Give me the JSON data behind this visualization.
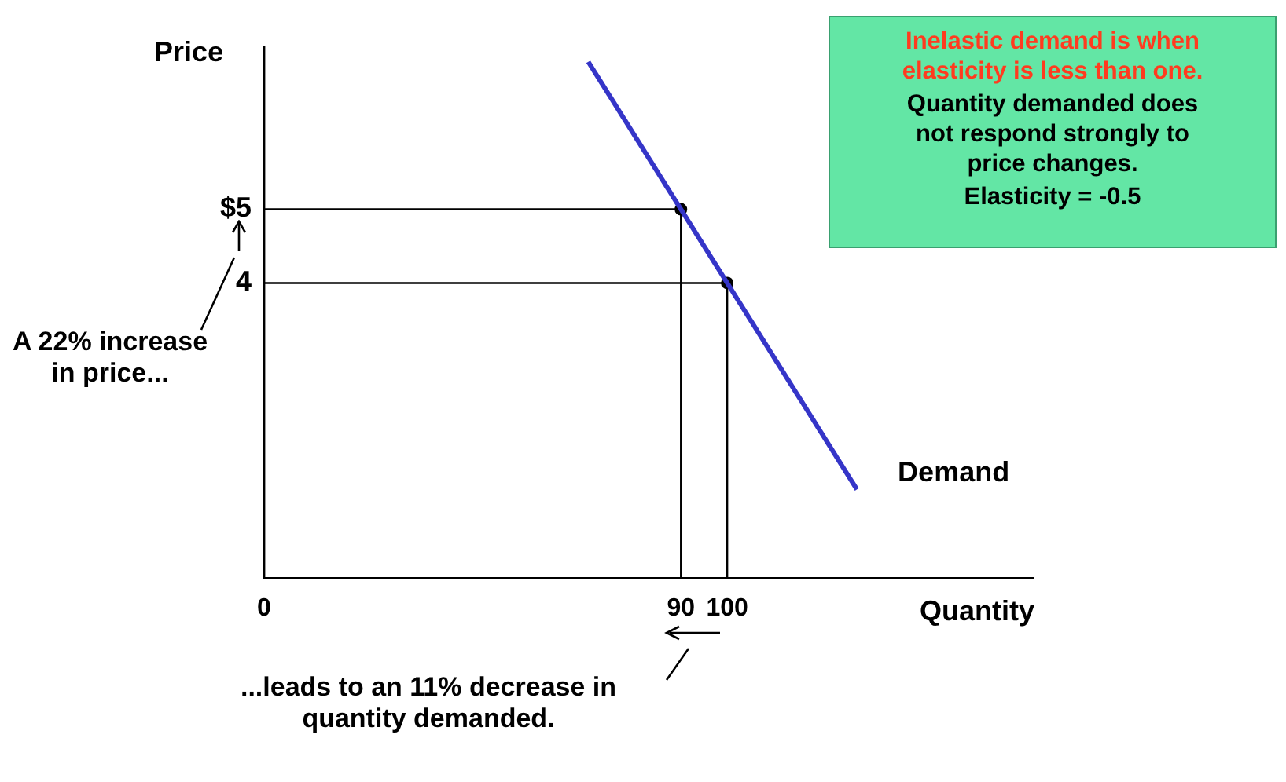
{
  "chart_data": {
    "type": "line",
    "xlabel": "Quantity",
    "ylabel": "Price",
    "xlim": [
      0,
      166
    ],
    "xticks": [
      0,
      90,
      100
    ],
    "ylim": [
      0,
      7.2
    ],
    "yticks": [
      {
        "value": 5,
        "label": "$5"
      },
      4
    ],
    "grid": false,
    "legend": false,
    "series": [
      {
        "name": "Demand",
        "type": "line",
        "color": "#3535c8",
        "x": [
          70,
          128
        ],
        "values": [
          7,
          1.2
        ],
        "marker": "none"
      },
      {
        "type": "line",
        "color": "#000000",
        "x": [
          0,
          90,
          90
        ],
        "values": [
          5,
          5,
          0
        ],
        "marker": "none"
      },
      {
        "type": "line",
        "color": "#000000",
        "x": [
          0,
          100,
          100
        ],
        "values": [
          4,
          4,
          0
        ],
        "marker": "none"
      },
      {
        "type": "scatter",
        "color": "#000000",
        "x": [
          90,
          100
        ],
        "values": [
          5,
          4
        ],
        "marker": "circle"
      }
    ],
    "annotations": [
      "Inelastic demand is when elasticity is less than one.",
      "Quantity demanded does not respond strongly to price changes.",
      "Elasticity = -0.5",
      "A 22% increase in price...",
      "...leads to an 11% decrease in quantity demanded."
    ]
  }
}
